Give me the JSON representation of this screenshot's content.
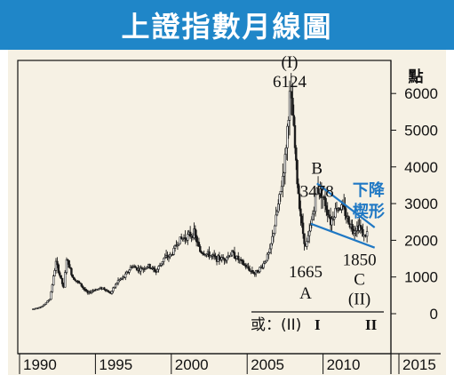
{
  "title": "上證指數月線圖",
  "colors": {
    "title_bg": "#1f86c8",
    "panel_bg": "#f6f1e4",
    "candles": "#1a1a1a",
    "wedge": "#1f78c4",
    "wedge_label": "#1f78c4",
    "text": "#111111"
  },
  "chart_data": {
    "type": "candlestick",
    "title": "上證指數月線圖",
    "y_unit_label": "點",
    "ylim": [
      0,
      6500
    ],
    "y_ticks": [
      0,
      1000,
      2000,
      3000,
      4000,
      5000,
      6000
    ],
    "y_tick_labels": [
      "0",
      "1000",
      "2000",
      "3000",
      "4000",
      "5000",
      "6000"
    ],
    "xlim": [
      1990,
      2015
    ],
    "x_ticks": [
      1990,
      1995,
      2000,
      2005,
      2010,
      2015
    ],
    "x_tick_labels": [
      "1990",
      "1995",
      "2000",
      "2005",
      "2010",
      "2015"
    ],
    "series": [
      {
        "kind": "monthly_close_approx",
        "x": [
          1990.9,
          1991.5,
          1992.0,
          1992.4,
          1992.9,
          1993.1,
          1993.5,
          1994.0,
          1994.5,
          1994.9,
          1995.5,
          1996.0,
          1996.5,
          1996.9,
          1997.4,
          1997.9,
          1998.5,
          1999.0,
          1999.5,
          2000.0,
          2000.5,
          2001.0,
          2001.5,
          2001.9,
          2002.5,
          2003.0,
          2003.5,
          2004.0,
          2004.5,
          2005.0,
          2005.5,
          2006.0,
          2006.5,
          2006.9,
          2007.2,
          2007.5,
          2007.8,
          2008.0,
          2008.3,
          2008.6,
          2008.85,
          2009.1,
          2009.4,
          2009.6,
          2009.9,
          2010.3,
          2010.5,
          2010.9,
          2011.3,
          2011.7,
          2012.0,
          2012.4,
          2012.7,
          2012.9
        ],
        "values": [
          130,
          200,
          400,
          1400,
          700,
          1500,
          1000,
          800,
          550,
          650,
          700,
          560,
          900,
          1000,
          1300,
          1200,
          1300,
          1150,
          1500,
          1600,
          2000,
          2100,
          2200,
          1700,
          1600,
          1500,
          1500,
          1650,
          1450,
          1250,
          1100,
          1300,
          1700,
          2600,
          3300,
          4200,
          5900,
          5400,
          3600,
          2400,
          1800,
          2200,
          2900,
          3400,
          3300,
          2800,
          2500,
          2900,
          2900,
          2500,
          2300,
          2400,
          2100,
          2200
        ]
      }
    ],
    "annotations": [
      {
        "text": "(I)",
        "x": 2007.8,
        "y": 6124
      },
      {
        "text": "6124",
        "x": 2007.8,
        "y": 6124
      },
      {
        "text": "B",
        "x": 2009.6,
        "y": 3478
      },
      {
        "text": "3478",
        "x": 2009.6,
        "y": 3478
      },
      {
        "text": "1665",
        "x": 2008.85,
        "y": 1665
      },
      {
        "text": "A",
        "x": 2008.85,
        "y": 1665
      },
      {
        "text": "1850",
        "x": 2012.4,
        "y": 1850
      },
      {
        "text": "C",
        "x": 2012.4,
        "y": 1850
      },
      {
        "text": "(II)",
        "x": 2012.4,
        "y": 1850
      },
      {
        "text": "下降",
        "x": 2013.0,
        "y": 3400
      },
      {
        "text": "楔形",
        "x": 2013.0,
        "y": 2950
      }
    ],
    "alt_count": {
      "label": "或：(II)",
      "left_wave": "I",
      "right_wave": "II"
    },
    "wedge_lines": [
      {
        "x": [
          2009.6,
          2013.4
        ],
        "y": [
          3550,
          2350
        ]
      },
      {
        "x": [
          2009.2,
          2013.4
        ],
        "y": [
          2450,
          1800
        ]
      }
    ]
  }
}
